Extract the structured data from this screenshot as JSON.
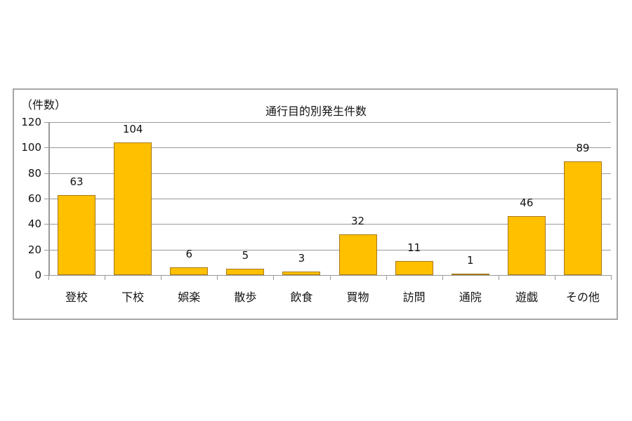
{
  "chart_data": {
    "type": "bar",
    "title": "通行目的別発生件数",
    "ylabel": "（件数）",
    "xlabel": "",
    "categories": [
      "登校",
      "下校",
      "娯楽",
      "散歩",
      "飲食",
      "買物",
      "訪問",
      "通院",
      "遊戯",
      "その他"
    ],
    "values": [
      63,
      104,
      6,
      5,
      3,
      32,
      11,
      1,
      46,
      89
    ],
    "ylim": [
      0,
      120
    ],
    "yticks": [
      0,
      20,
      40,
      60,
      80,
      100,
      120
    ],
    "grid": true,
    "legend": null,
    "data_labels": true,
    "bar_color": "#ffc000",
    "bar_edge_color": "#a8781a"
  },
  "labels": {
    "title": "通行目的別発生件数",
    "unit": "（件数）",
    "yticks": [
      "0",
      "20",
      "40",
      "60",
      "80",
      "100",
      "120"
    ]
  }
}
